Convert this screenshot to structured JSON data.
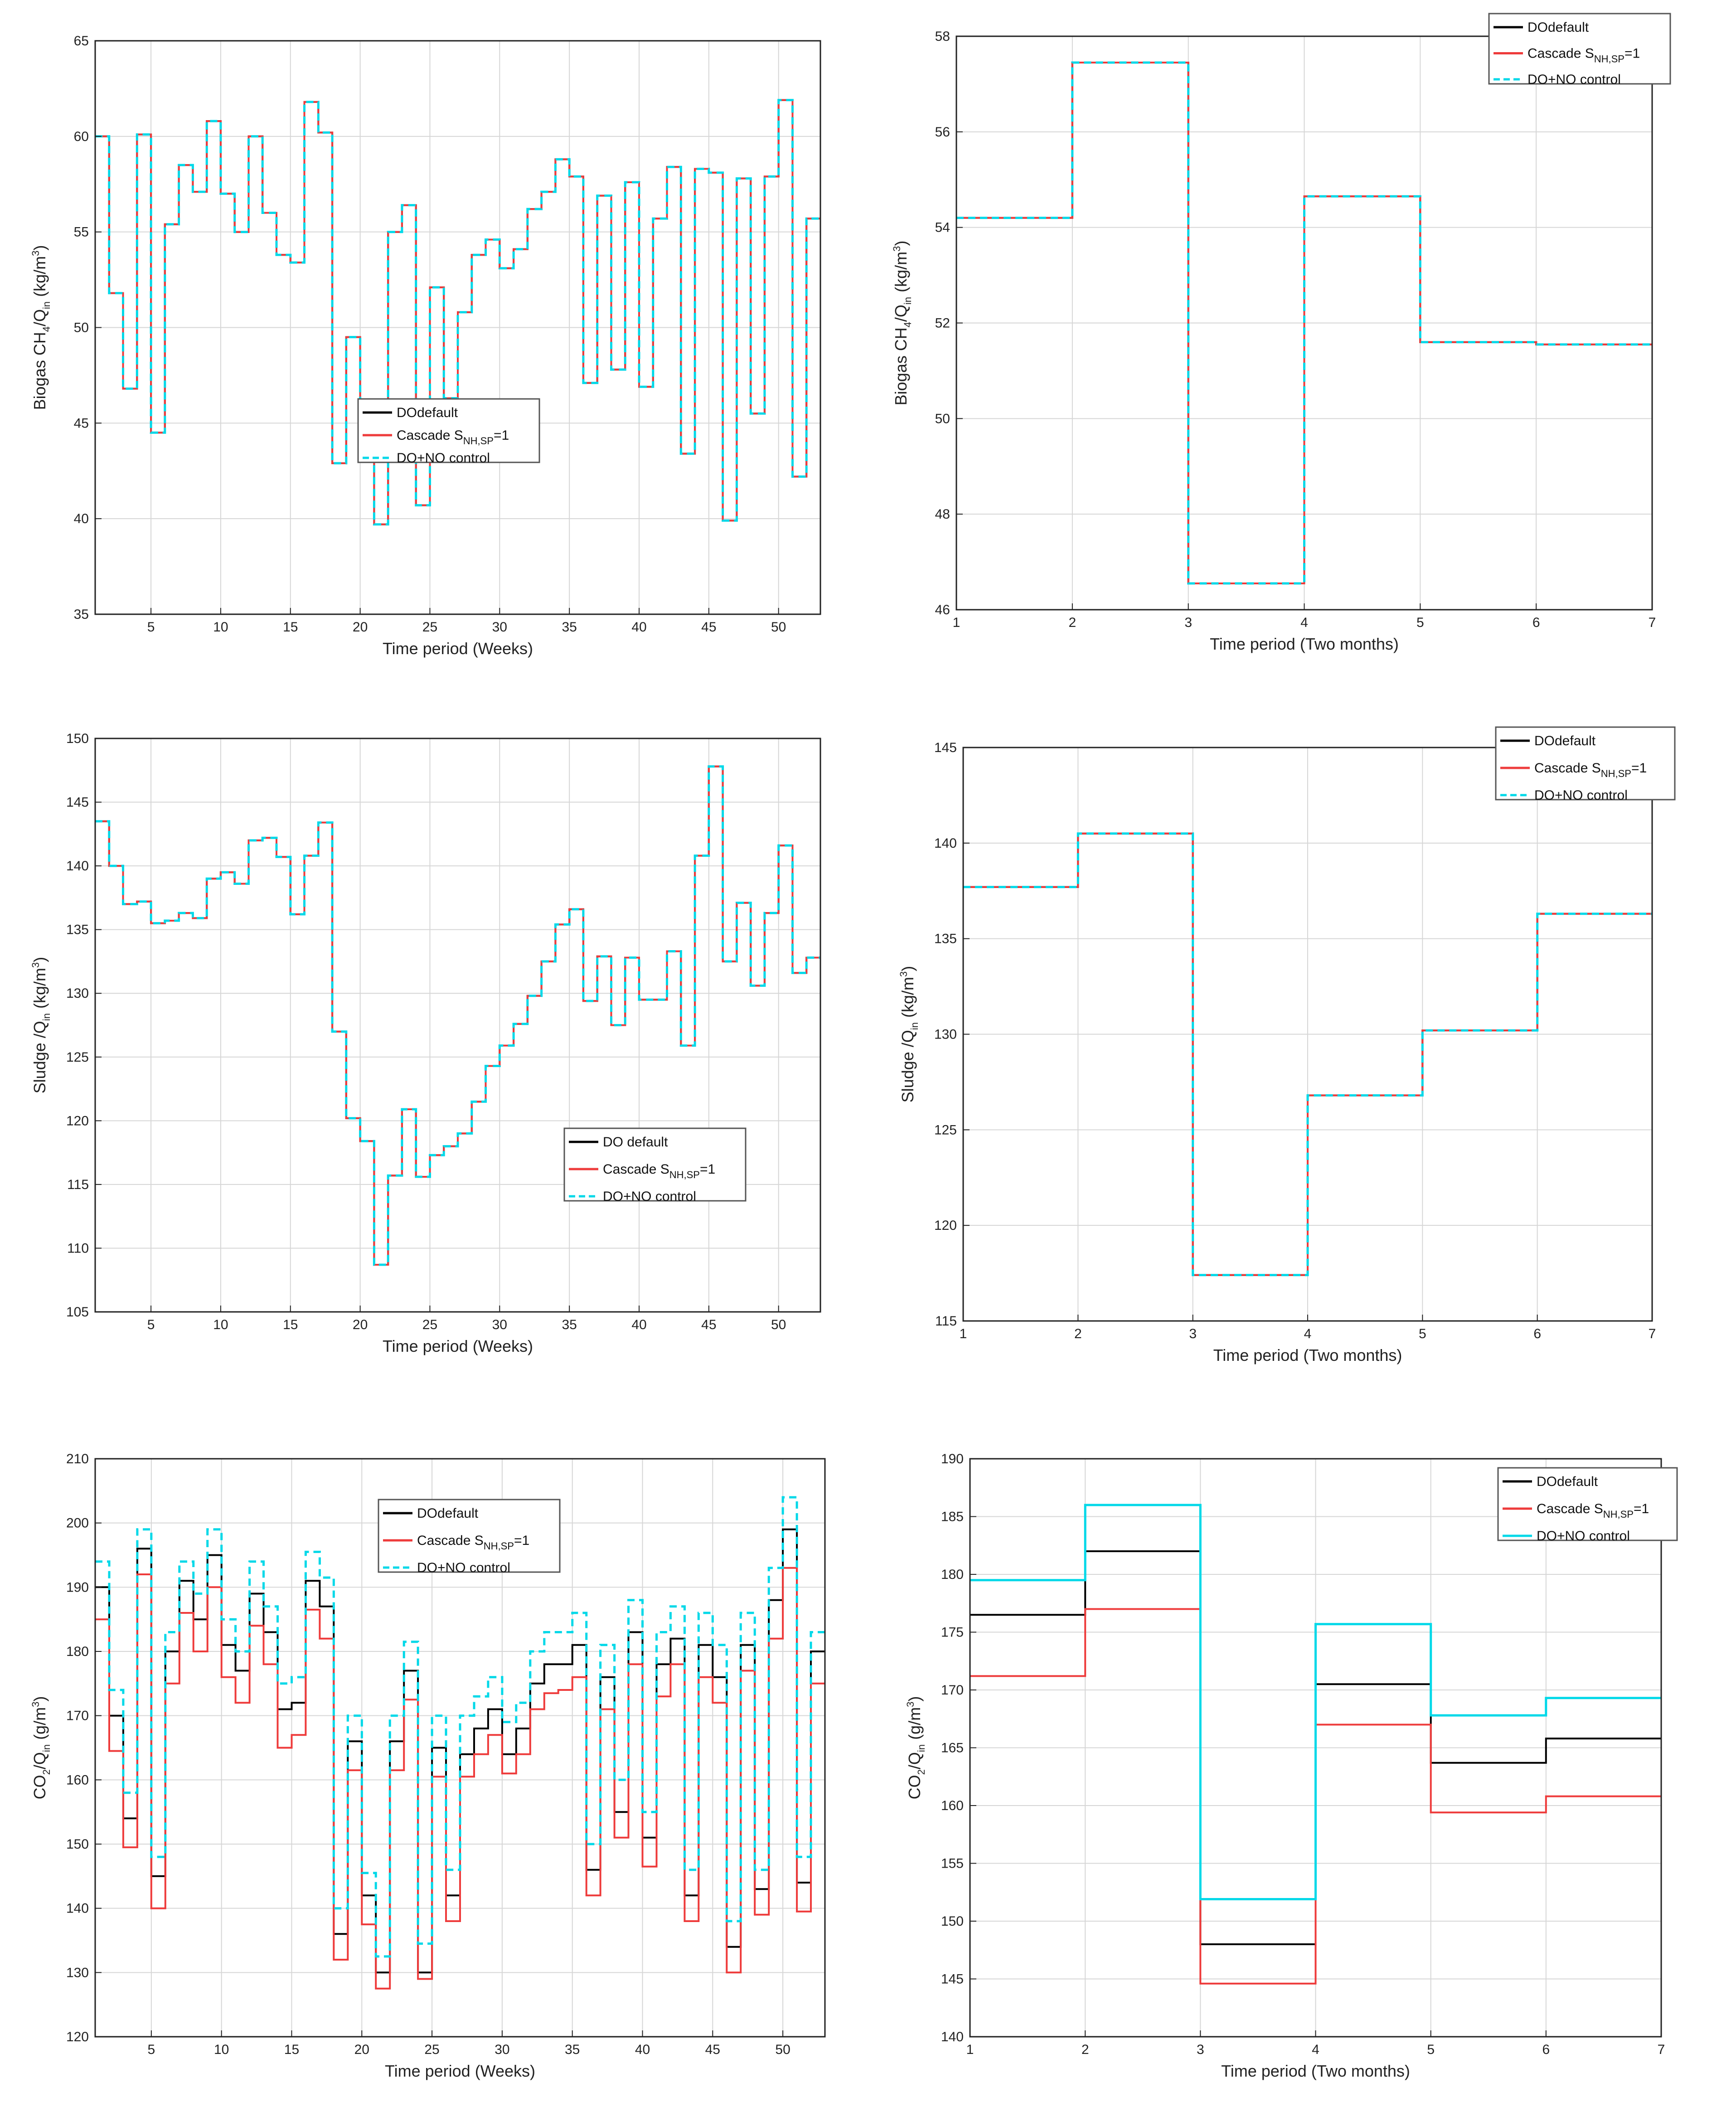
{
  "figure": {
    "xlabel_weeks": "Time period (Weeks)",
    "xlabel_months": "Time period (Two months)"
  },
  "chart_data": [
    {
      "type": "line",
      "title": "",
      "xlabel": "Time period (Weeks)",
      "ylabel": "Biogas CH4/Qin (kg/m3)",
      "ylabel_parts": {
        "pre": "Biogas CH",
        "s1": "4",
        "mid": "/Q",
        "s2": "in",
        "post": " (kg/m",
        "s3": "3",
        "end": ")"
      },
      "xlim": [
        1,
        53
      ],
      "ylim": [
        35,
        65
      ],
      "xticks": [
        5,
        10,
        15,
        20,
        25,
        30,
        35,
        40,
        45,
        50
      ],
      "yticks": [
        35,
        40,
        45,
        50,
        55,
        60,
        65
      ],
      "grid": true,
      "legend_position": "lower-middle",
      "step": true,
      "series": [
        {
          "name": "DOdefault",
          "color": "#000000",
          "dash": "solid",
          "values": [
            60,
            51.8,
            46.8,
            60.1,
            44.5,
            55.4,
            58.5,
            57.1,
            60.8,
            57,
            55,
            60,
            56,
            53.8,
            53.4,
            61.8,
            60.2,
            42.9,
            49.5,
            45.3,
            39.7,
            55,
            56.4,
            40.7,
            52.1,
            46.3,
            50.8,
            53.8,
            54.6,
            53.1,
            54.1,
            56.2,
            57.1,
            58.8,
            57.9,
            47.1,
            56.9,
            47.8,
            57.6,
            46.9,
            55.7,
            58.4,
            43.4,
            58.3,
            58.1,
            39.9,
            57.8,
            45.5,
            57.9,
            61.9,
            42.2,
            55.7
          ]
        },
        {
          "name": "Cascade S_NH,SP=1",
          "color": "#ee3b3b",
          "dash": "solid",
          "values": [
            60,
            51.8,
            46.8,
            60.1,
            44.5,
            55.4,
            58.5,
            57.1,
            60.8,
            57,
            55,
            60,
            56,
            53.8,
            53.4,
            61.8,
            60.2,
            42.9,
            49.5,
            45.3,
            39.7,
            55,
            56.4,
            40.7,
            52.1,
            46.3,
            50.8,
            53.8,
            54.6,
            53.1,
            54.1,
            56.2,
            57.1,
            58.8,
            57.9,
            47.1,
            56.9,
            47.8,
            57.6,
            46.9,
            55.7,
            58.4,
            43.4,
            58.3,
            58.1,
            39.9,
            57.8,
            45.5,
            57.9,
            61.9,
            42.2,
            55.7
          ]
        },
        {
          "name": "DO+NO control",
          "color": "#00d8e8",
          "dash": "dashed",
          "values": [
            60,
            51.8,
            46.8,
            60.1,
            44.5,
            55.4,
            58.5,
            57.1,
            60.8,
            57,
            55,
            60,
            56,
            53.8,
            53.4,
            61.8,
            60.2,
            42.9,
            49.5,
            45.3,
            39.7,
            55,
            56.4,
            40.7,
            52.1,
            46.3,
            50.8,
            53.8,
            54.6,
            53.1,
            54.1,
            56.2,
            57.1,
            58.8,
            57.9,
            47.1,
            56.9,
            47.8,
            57.6,
            46.9,
            55.7,
            58.4,
            43.4,
            58.3,
            58.1,
            39.9,
            57.8,
            45.5,
            57.9,
            61.9,
            42.2,
            55.7
          ]
        }
      ],
      "legend": [
        {
          "pre": "DOdefault",
          "sub": "",
          "post": ""
        },
        {
          "pre": "Cascade S",
          "sub": "NH,SP",
          "post": "=1"
        },
        {
          "pre": "DO+NO control",
          "sub": "",
          "post": ""
        }
      ]
    },
    {
      "type": "line",
      "title": "",
      "xlabel": "Time period (Two months)",
      "ylabel": "Biogas CH4/Qin (kg/m3)",
      "ylabel_parts": {
        "pre": "Biogas CH",
        "s1": "4",
        "mid": "/Q",
        "s2": "in",
        "post": " (kg/m",
        "s3": "3",
        "end": ")"
      },
      "xlim": [
        1,
        7
      ],
      "ylim": [
        46,
        58
      ],
      "xticks": [
        1,
        2,
        3,
        4,
        5,
        6,
        7
      ],
      "yticks": [
        46,
        48,
        50,
        52,
        54,
        56,
        58
      ],
      "grid": true,
      "legend_position": "top-right",
      "step": true,
      "series": [
        {
          "name": "DOdefault",
          "color": "#000000",
          "dash": "solid",
          "values": [
            54.2,
            57.45,
            46.55,
            54.65,
            51.6,
            51.55
          ]
        },
        {
          "name": "Cascade S_NH,SP=1",
          "color": "#ee3b3b",
          "dash": "solid",
          "values": [
            54.2,
            57.45,
            46.55,
            54.65,
            51.6,
            51.55
          ]
        },
        {
          "name": "DO+NO control",
          "color": "#00d8e8",
          "dash": "dashed",
          "values": [
            54.2,
            57.45,
            46.55,
            54.65,
            51.6,
            51.55
          ]
        }
      ],
      "legend": [
        {
          "pre": "DOdefault",
          "sub": "",
          "post": ""
        },
        {
          "pre": "Cascade S",
          "sub": "NH,SP",
          "post": "=1"
        },
        {
          "pre": "DO+NO control",
          "sub": "",
          "post": ""
        }
      ]
    },
    {
      "type": "line",
      "title": "",
      "xlabel": "Time period (Weeks)",
      "ylabel": "Sludge /Qin (kg/m3)",
      "ylabel_parts": {
        "pre": "Sludge /Q",
        "s1": "",
        "mid": "",
        "s2": "in",
        "post": " (kg/m",
        "s3": "3",
        "end": ")"
      },
      "xlim": [
        1,
        53
      ],
      "ylim": [
        105,
        150
      ],
      "xticks": [
        5,
        10,
        15,
        20,
        25,
        30,
        35,
        40,
        45,
        50
      ],
      "yticks": [
        105,
        110,
        115,
        120,
        125,
        130,
        135,
        140,
        145,
        150
      ],
      "grid": true,
      "legend_position": "lower-right",
      "step": true,
      "series": [
        {
          "name": "DO default",
          "color": "#000000",
          "dash": "solid",
          "values": [
            143.5,
            140,
            137,
            137.2,
            135.5,
            135.7,
            136.3,
            135.9,
            139,
            139.5,
            138.6,
            142,
            142.2,
            140.7,
            136.2,
            140.8,
            143.4,
            127,
            120.2,
            118.4,
            108.7,
            115.7,
            120.9,
            115.6,
            117.3,
            118,
            119,
            121.5,
            124.3,
            125.9,
            127.6,
            129.8,
            132.5,
            135.4,
            136.6,
            129.4,
            132.9,
            127.5,
            132.8,
            129.5,
            129.5,
            133.3,
            125.9,
            140.8,
            147.8,
            132.5,
            137.1,
            130.6,
            136.3,
            141.6,
            131.6,
            132.8
          ]
        },
        {
          "name": "Cascade S_NH,SP=1",
          "color": "#ee3b3b",
          "dash": "solid",
          "values": [
            143.5,
            140,
            137,
            137.2,
            135.5,
            135.7,
            136.3,
            135.9,
            139,
            139.5,
            138.6,
            142,
            142.2,
            140.7,
            136.2,
            140.8,
            143.4,
            127,
            120.2,
            118.4,
            108.7,
            115.7,
            120.9,
            115.6,
            117.3,
            118,
            119,
            121.5,
            124.3,
            125.9,
            127.6,
            129.8,
            132.5,
            135.4,
            136.6,
            129.4,
            132.9,
            127.5,
            132.8,
            129.5,
            129.5,
            133.3,
            125.9,
            140.8,
            147.8,
            132.5,
            137.1,
            130.6,
            136.3,
            141.6,
            131.6,
            132.8
          ]
        },
        {
          "name": "DO+NO control",
          "color": "#00d8e8",
          "dash": "dashed",
          "values": [
            143.5,
            140,
            137,
            137.2,
            135.5,
            135.7,
            136.3,
            135.9,
            139,
            139.5,
            138.6,
            142,
            142.2,
            140.7,
            136.2,
            140.8,
            143.4,
            127,
            120.2,
            118.4,
            108.7,
            115.7,
            120.9,
            115.6,
            117.3,
            118,
            119,
            121.5,
            124.3,
            125.9,
            127.6,
            129.8,
            132.5,
            135.4,
            136.6,
            129.4,
            132.9,
            127.5,
            132.8,
            129.5,
            129.5,
            133.3,
            125.9,
            140.8,
            147.8,
            132.5,
            137.1,
            130.6,
            136.3,
            141.6,
            131.6,
            132.8
          ]
        }
      ],
      "legend": [
        {
          "pre": "DO default",
          "sub": "",
          "post": ""
        },
        {
          "pre": "Cascade S",
          "sub": "NH,SP",
          "post": "=1"
        },
        {
          "pre": "DO+NO control",
          "sub": "",
          "post": ""
        }
      ]
    },
    {
      "type": "line",
      "title": "",
      "xlabel": "Time period (Two months)",
      "ylabel": "Sludge /Qin (kg/m3)",
      "ylabel_parts": {
        "pre": "Sludge /Q",
        "s1": "",
        "mid": "",
        "s2": "in",
        "post": " (kg/m",
        "s3": "3",
        "end": ")"
      },
      "xlim": [
        1,
        7
      ],
      "ylim": [
        115,
        145
      ],
      "xticks": [
        1,
        2,
        3,
        4,
        5,
        6,
        7
      ],
      "yticks": [
        115,
        120,
        125,
        130,
        135,
        140,
        145
      ],
      "grid": true,
      "legend_position": "top-right",
      "step": true,
      "series": [
        {
          "name": "DOdefault",
          "color": "#000000",
          "dash": "solid",
          "values": [
            137.7,
            140.5,
            117.4,
            126.8,
            130.2,
            136.3
          ]
        },
        {
          "name": "Cascade S_NH,SP=1",
          "color": "#ee3b3b",
          "dash": "solid",
          "values": [
            137.7,
            140.5,
            117.4,
            126.8,
            130.2,
            136.3
          ]
        },
        {
          "name": "DO+NO control",
          "color": "#00d8e8",
          "dash": "dashed",
          "values": [
            137.7,
            140.5,
            117.4,
            126.8,
            130.2,
            136.3
          ]
        }
      ],
      "legend": [
        {
          "pre": "DOdefault",
          "sub": "",
          "post": ""
        },
        {
          "pre": "Cascade S",
          "sub": "NH,SP",
          "post": "=1"
        },
        {
          "pre": "DO+NO control",
          "sub": "",
          "post": ""
        }
      ]
    },
    {
      "type": "line",
      "title": "",
      "xlabel": "Time period (Weeks)",
      "ylabel": "CO2/Qin (g/m3)",
      "ylabel_parts": {
        "pre": "CO",
        "s1": "2",
        "mid": "/Q",
        "s2": "in",
        "post": " (g/m",
        "s3": "3",
        "end": ")"
      },
      "xlim": [
        1,
        53
      ],
      "ylim": [
        120,
        210
      ],
      "xticks": [
        5,
        10,
        15,
        20,
        25,
        30,
        35,
        40,
        45,
        50
      ],
      "yticks": [
        120,
        130,
        140,
        150,
        160,
        170,
        180,
        190,
        200,
        210
      ],
      "grid": true,
      "legend_position": "top-middle",
      "step": true,
      "series": [
        {
          "name": "DOdefault",
          "color": "#000000",
          "dash": "solid",
          "values": [
            190,
            170,
            154,
            196,
            145,
            180,
            191,
            185,
            195,
            181,
            177,
            189,
            183,
            171,
            172,
            191,
            187,
            136,
            166,
            142,
            130,
            166,
            177,
            130,
            165,
            142,
            164,
            168,
            171,
            164,
            168,
            175,
            178,
            178,
            181,
            146,
            176,
            155,
            183,
            151,
            178,
            182,
            142,
            181,
            176,
            134,
            181,
            143,
            188,
            199,
            144,
            180
          ]
        },
        {
          "name": "Cascade S_NH,SP=1",
          "color": "#ee3b3b",
          "dash": "solid",
          "values": [
            185,
            164.5,
            149.5,
            192,
            140,
            175,
            186,
            180,
            190,
            176,
            172,
            184,
            178,
            165,
            167,
            186.5,
            182,
            132,
            161.5,
            137.5,
            127.5,
            161.5,
            172.5,
            129,
            160.5,
            138,
            160.5,
            164,
            167,
            161,
            164,
            171,
            173.5,
            174,
            176,
            142,
            171,
            151,
            178,
            146.5,
            173,
            178,
            138,
            176,
            172,
            130,
            177,
            139,
            182,
            193,
            139.5,
            175
          ]
        },
        {
          "name": "DO+NO control",
          "color": "#00d8e8",
          "dash": "dashed",
          "values": [
            194,
            174,
            158,
            199,
            148,
            183,
            194,
            189,
            199,
            185,
            180,
            194,
            187,
            175,
            176,
            195.5,
            191.5,
            140,
            170,
            145.5,
            132.5,
            170,
            181.5,
            134.5,
            170,
            146,
            170,
            173,
            176,
            169,
            172,
            180,
            183,
            183,
            186,
            150,
            181,
            160,
            188,
            155,
            183,
            187,
            146,
            186,
            181,
            138,
            186,
            146,
            193,
            204,
            148,
            183
          ]
        }
      ],
      "legend": [
        {
          "pre": "DOdefault",
          "sub": "",
          "post": ""
        },
        {
          "pre": "Cascade S",
          "sub": "NH,SP",
          "post": "=1"
        },
        {
          "pre": "DO+NO control",
          "sub": "",
          "post": ""
        }
      ]
    },
    {
      "type": "line",
      "title": "",
      "xlabel": "Time period (Two months)",
      "ylabel": "CO2/Qin (g/m3)",
      "ylabel_parts": {
        "pre": "CO",
        "s1": "2",
        "mid": "/Q",
        "s2": "in",
        "post": " (g/m",
        "s3": "3",
        "end": ")"
      },
      "xlim": [
        1,
        7
      ],
      "ylim": [
        140,
        190
      ],
      "xticks": [
        1,
        2,
        3,
        4,
        5,
        6,
        7
      ],
      "yticks": [
        140,
        145,
        150,
        155,
        160,
        165,
        170,
        175,
        180,
        185,
        190
      ],
      "grid": true,
      "legend_position": "top-right",
      "step": true,
      "series": [
        {
          "name": "DOdefault",
          "color": "#000000",
          "dash": "solid",
          "values": [
            176.5,
            182,
            148,
            170.5,
            163.7,
            165.8
          ]
        },
        {
          "name": "Cascade S_NH,SP=1",
          "color": "#ee3b3b",
          "dash": "solid",
          "values": [
            171.2,
            177,
            144.6,
            167,
            159.4,
            160.8
          ]
        },
        {
          "name": "DO+NO control",
          "color": "#00d8e8",
          "dash": "solid",
          "values": [
            179.5,
            186,
            151.9,
            175.7,
            167.8,
            169.3
          ]
        }
      ],
      "legend": [
        {
          "pre": "DOdefault",
          "sub": "",
          "post": ""
        },
        {
          "pre": "Cascade S",
          "sub": "NH,SP",
          "post": "=1"
        },
        {
          "pre": "DO+NO control",
          "sub": "",
          "post": ""
        }
      ]
    }
  ]
}
